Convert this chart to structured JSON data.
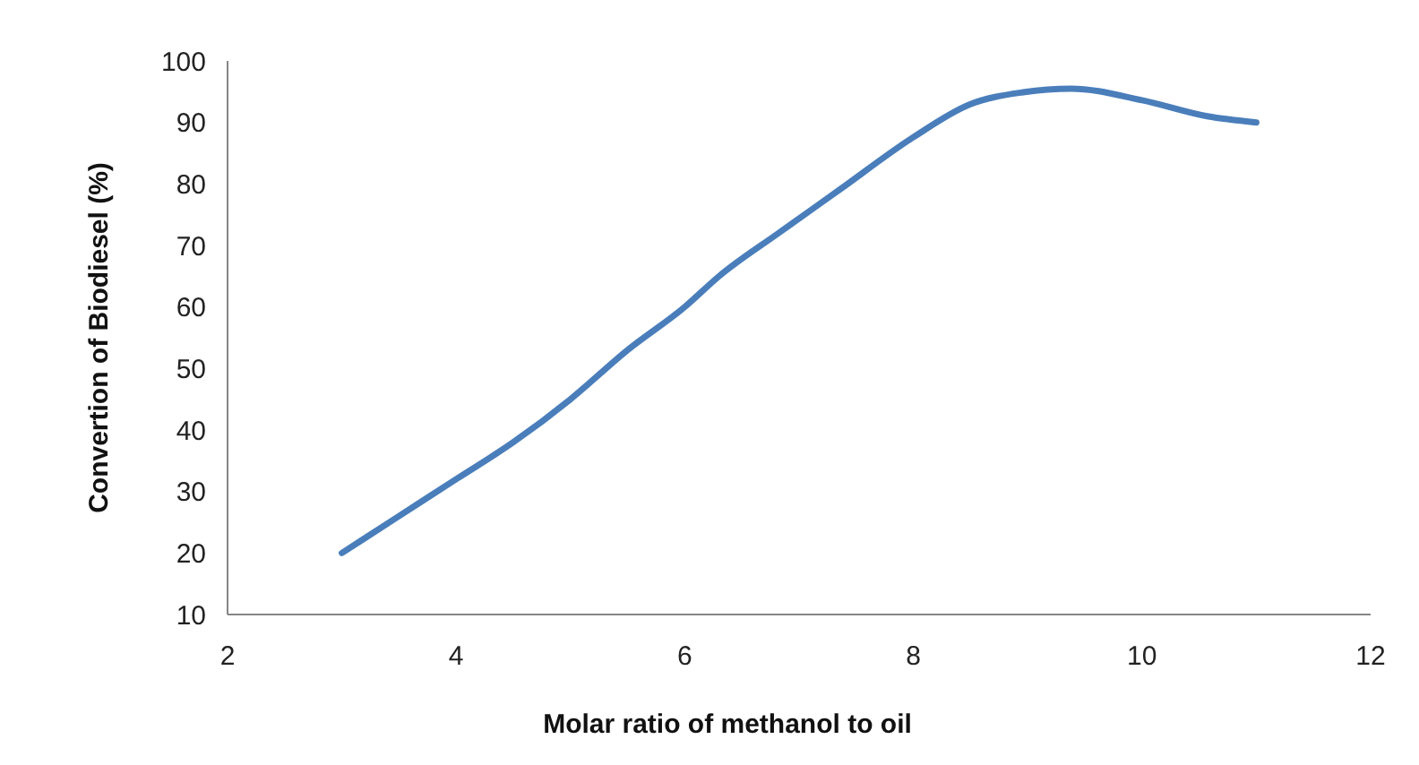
{
  "chart_data": {
    "type": "line",
    "xlabel": "Molar ratio of methanol to oil",
    "ylabel": "Convertion of Biodiesel (%)",
    "xlim": [
      2,
      12
    ],
    "xticks": [
      2,
      4,
      6,
      8,
      10,
      12
    ],
    "ylim": [
      10,
      100
    ],
    "yticks": [
      10,
      20,
      30,
      40,
      50,
      60,
      70,
      80,
      90,
      100
    ],
    "grid": false,
    "series": [
      {
        "color": "#4a7ebb",
        "x": [
          3,
          3.5,
          4,
          4.5,
          5,
          5.5,
          6,
          6.3,
          6.82,
          7.35,
          8,
          8.49,
          8.96,
          9.38,
          10,
          10.57,
          11
        ],
        "values": [
          20,
          26,
          32,
          38,
          45,
          53,
          60,
          65,
          72,
          79,
          87.6,
          92.9,
          94.9,
          95.5,
          93.6,
          91,
          90
        ]
      }
    ]
  }
}
